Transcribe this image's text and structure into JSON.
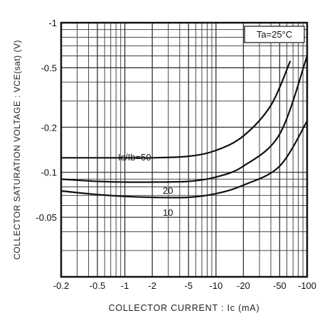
{
  "chart_data": {
    "type": "line",
    "xlabel": "COLLECTOR CURRENT : Ic (mA)",
    "ylabel": "COLLECTOR SATURATION VOLTAGE : VCE(sat) (V)",
    "x_scale": "log",
    "y_scale": "log",
    "xlim": [
      -0.2,
      -100
    ],
    "ylim": [
      -0.02,
      -1
    ],
    "x_ticks": [
      "-0.2",
      "-0.5",
      "-1",
      "-2",
      "-5",
      "-10",
      "-20",
      "-50",
      "-100"
    ],
    "y_ticks": [
      "-1",
      "-0.5",
      "-0.2",
      "-0.1",
      "-0.05"
    ],
    "grid": true,
    "annotation": "Ta=25°C",
    "series": [
      {
        "name": "Ic/Ib=50",
        "x": [
          -0.2,
          -0.5,
          -1,
          -2,
          -5,
          -10,
          -20,
          -40,
          -65
        ],
        "y": [
          -0.125,
          -0.125,
          -0.125,
          -0.125,
          -0.128,
          -0.14,
          -0.175,
          -0.28,
          -0.55
        ]
      },
      {
        "name": "20",
        "x": [
          -0.2,
          -0.5,
          -1,
          -2,
          -5,
          -10,
          -20,
          -50,
          -100
        ],
        "y": [
          -0.09,
          -0.087,
          -0.086,
          -0.086,
          -0.087,
          -0.093,
          -0.11,
          -0.18,
          -0.6
        ]
      },
      {
        "name": "10",
        "x": [
          -0.2,
          -0.5,
          -1,
          -2,
          -5,
          -10,
          -20,
          -50,
          -100
        ],
        "y": [
          -0.075,
          -0.071,
          -0.069,
          -0.068,
          -0.068,
          -0.072,
          -0.082,
          -0.11,
          -0.22
        ]
      }
    ]
  }
}
